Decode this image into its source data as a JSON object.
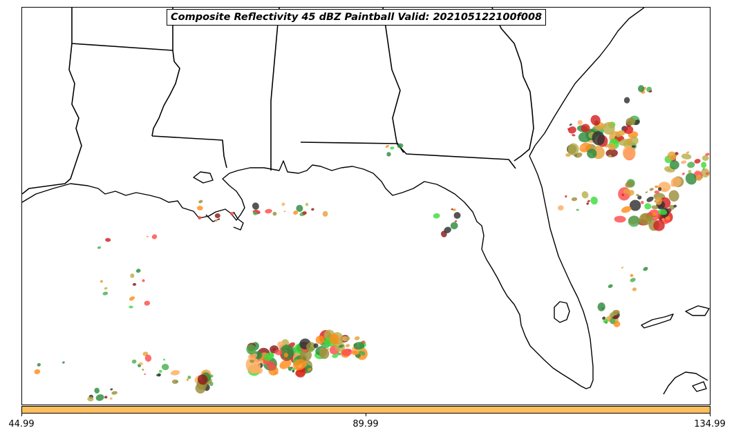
{
  "title": "Composite Reflectivity 45 dBZ Paintball Valid: 202105122100f008",
  "colorbar": {
    "color": "#fdbf5e",
    "ticks": [
      "44.99",
      "89.99",
      "134.99"
    ]
  },
  "chart_data": {
    "type": "map",
    "map": {
      "region": "Gulf of Mexico",
      "boundaries": [
        "state lines",
        "coastlines"
      ],
      "coastline_color": "#000000"
    },
    "colorbar": {
      "range": [
        44.99,
        134.99
      ],
      "ticks": [
        44.99,
        89.99,
        134.99
      ]
    },
    "member_colors": [
      "#2f2f2f",
      "#8b1a1a",
      "#d62020",
      "#ff4c4c",
      "#ff8c1a",
      "#fdae61",
      "#e6a23c",
      "#9a8f3a",
      "#b8b04a",
      "#2e8b3e",
      "#4caf50",
      "#3ddc3d"
    ]
  }
}
